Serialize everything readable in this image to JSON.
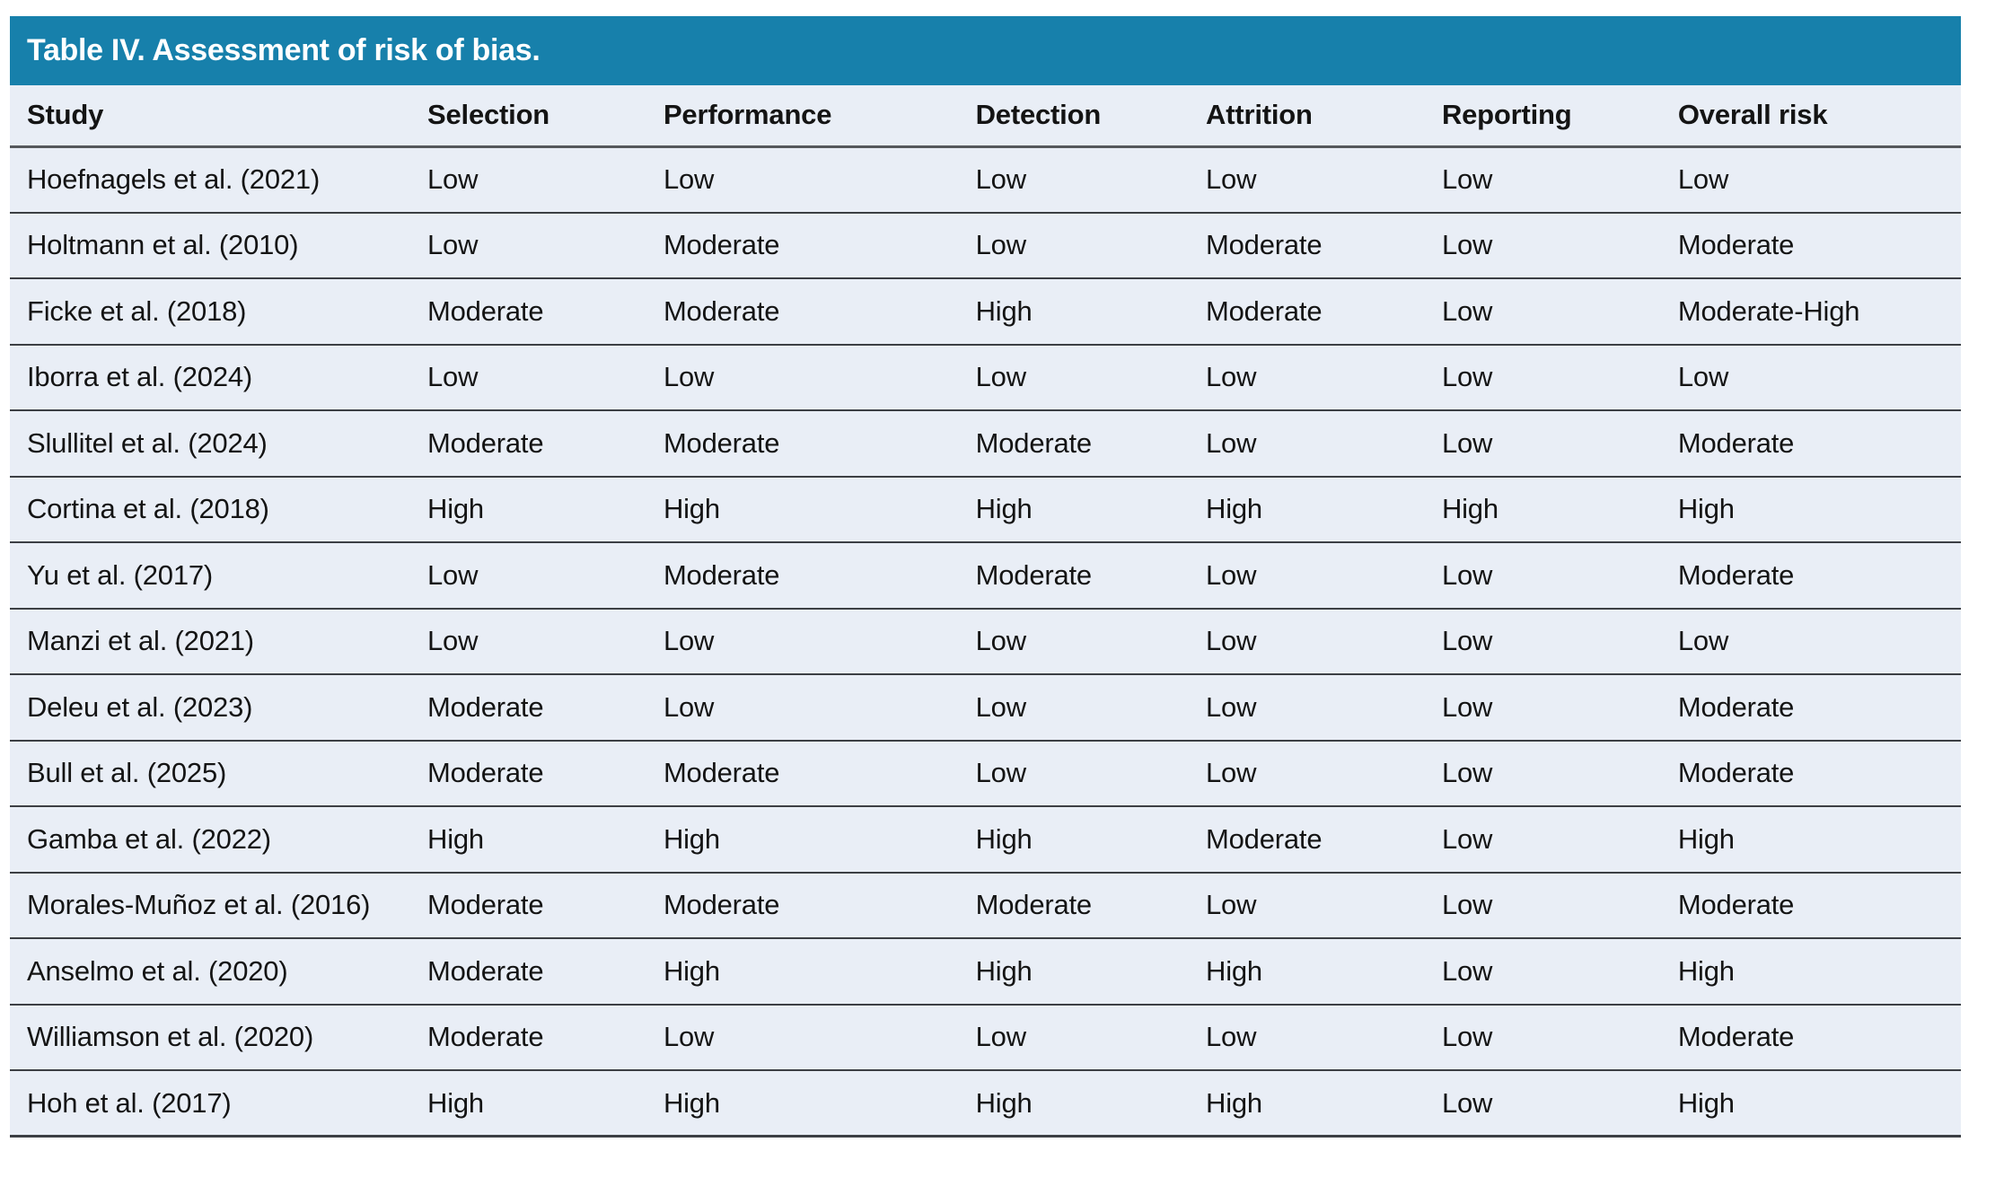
{
  "table": {
    "title": "Table IV. Assessment of risk of bias.",
    "columns": [
      "Study",
      "Selection",
      "Performance",
      "Detection",
      "Attrition",
      "Reporting",
      "Overall risk"
    ],
    "rows": [
      {
        "study": "Hoefnagels et al. (2021)",
        "ratings": [
          "Low",
          "Low",
          "Low",
          "Low",
          "Low",
          "Low"
        ]
      },
      {
        "study": "Holtmann et al. (2010)",
        "ratings": [
          "Low",
          "Moderate",
          "Low",
          "Moderate",
          "Low",
          "Moderate"
        ]
      },
      {
        "study": "Ficke et al. (2018)",
        "ratings": [
          "Moderate",
          "Moderate",
          "High",
          "Moderate",
          "Low",
          "Moderate-High"
        ]
      },
      {
        "study": "Iborra et al. (2024)",
        "ratings": [
          "Low",
          "Low",
          "Low",
          "Low",
          "Low",
          "Low"
        ]
      },
      {
        "study": "Slullitel et al. (2024)",
        "ratings": [
          "Moderate",
          "Moderate",
          "Moderate",
          "Low",
          "Low",
          "Moderate"
        ]
      },
      {
        "study": "Cortina et al. (2018)",
        "ratings": [
          "High",
          "High",
          "High",
          "High",
          "High",
          "High"
        ]
      },
      {
        "study": "Yu et al. (2017)",
        "ratings": [
          "Low",
          "Moderate",
          "Moderate",
          "Low",
          "Low",
          "Moderate"
        ]
      },
      {
        "study": "Manzi et al. (2021)",
        "ratings": [
          "Low",
          "Low",
          "Low",
          "Low",
          "Low",
          "Low"
        ]
      },
      {
        "study": "Deleu et al. (2023)",
        "ratings": [
          "Moderate",
          "Low",
          "Low",
          "Low",
          "Low",
          "Moderate"
        ]
      },
      {
        "study": "Bull et al. (2025)",
        "ratings": [
          "Moderate",
          "Moderate",
          "Low",
          "Low",
          "Low",
          "Moderate"
        ]
      },
      {
        "study": "Gamba et al. (2022)",
        "ratings": [
          "High",
          "High",
          "High",
          "Moderate",
          "Low",
          "High"
        ]
      },
      {
        "study": "Morales-Muñoz et al. (2016)",
        "ratings": [
          "Moderate",
          "Moderate",
          "Moderate",
          "Low",
          "Low",
          "Moderate"
        ]
      },
      {
        "study": "Anselmo et al. (2020)",
        "ratings": [
          "Moderate",
          "High",
          "High",
          "High",
          "Low",
          "High"
        ]
      },
      {
        "study": "Williamson et al. (2020)",
        "ratings": [
          "Moderate",
          "Low",
          "Low",
          "Low",
          "Low",
          "Moderate"
        ]
      },
      {
        "study": "Hoh et al. (2017)",
        "ratings": [
          "High",
          "High",
          "High",
          "High",
          "Low",
          "High"
        ]
      }
    ]
  },
  "colors": {
    "title_bar": "#1780ab",
    "row_bg": "#e9eef6",
    "header_border": "#55585c",
    "row_border": "#3c3f44",
    "title_text": "#ffffff",
    "body_text": "#141414"
  }
}
